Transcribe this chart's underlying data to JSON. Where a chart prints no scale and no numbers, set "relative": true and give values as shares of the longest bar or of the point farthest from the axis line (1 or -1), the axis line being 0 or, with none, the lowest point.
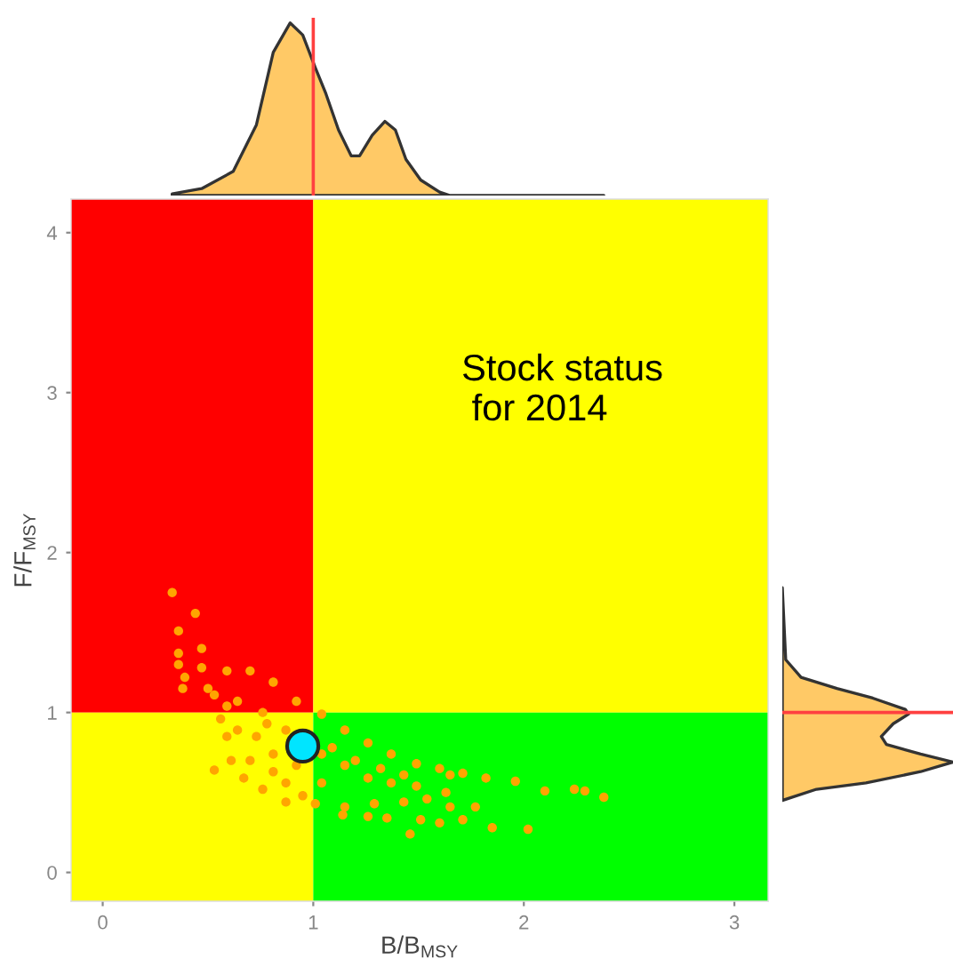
{
  "chart_data": [
    {
      "type": "scatter",
      "xlabel": "B/B$_{MSY}$",
      "ylabel": "F/F$_{MSY}$",
      "xlim": [
        -0.15,
        3.16
      ],
      "ylim": [
        -0.18,
        4.21
      ],
      "xticks": [
        0,
        1,
        2,
        3
      ],
      "yticks": [
        0,
        1,
        2,
        3,
        4
      ],
      "marker": "circle",
      "annotations": [
        "Stock status\n for 2014"
      ],
      "series": [
        {
          "type": "line",
          "color": "#ff0000",
          "x": [
            -0.15,
            1
          ],
          "values": [
            null,
            null
          ],
          "lower": [
            1,
            1
          ],
          "upper": [
            4.21,
            4.21
          ]
        },
        {
          "type": "line",
          "color": "#ffff00",
          "x": [
            1,
            3.16
          ],
          "values": [
            null,
            null
          ],
          "lower": [
            1,
            1
          ],
          "upper": [
            4.21,
            4.21
          ]
        },
        {
          "type": "line",
          "color": "#ffff00",
          "x": [
            -0.15,
            1
          ],
          "values": [
            null,
            null
          ],
          "lower": [
            -0.18,
            -0.18
          ],
          "upper": [
            1,
            1
          ]
        },
        {
          "type": "line",
          "color": "#00ff00",
          "x": [
            1,
            3.16
          ],
          "values": [
            null,
            null
          ],
          "lower": [
            -0.18,
            -0.18
          ],
          "upper": [
            1,
            1
          ]
        },
        {
          "type": "scatter",
          "color": "#ffa500",
          "x": [
            0.33,
            0.44,
            0.36,
            0.47,
            0.36,
            0.38,
            0.53,
            1.71,
            1.82,
            1.96,
            2.1,
            2.24,
            2.29,
            2.38,
            2.02,
            1.85,
            1.71,
            1.6,
            1.46,
            1.14,
            1.26,
            1.35,
            1.51,
            1.65,
            1.77,
            0.36,
            0.47,
            0.59,
            0.7,
            0.81,
            0.92,
            1.04,
            1.15,
            1.26,
            1.37,
            1.49,
            1.6,
            1.65,
            0.39,
            0.5,
            0.56,
            0.59,
            0.61,
            0.67,
            0.76,
            0.87,
            1.01,
            1.15,
            1.29,
            1.43,
            1.54,
            1.63,
            0.53,
            0.64,
            0.76,
            0.87,
            0.73,
            0.81,
            0.92,
            1.04,
            1.15,
            1.26,
            1.37,
            1.49,
            1.04,
            0.87,
            0.7,
            0.64,
            0.59,
            0.78,
            1.09,
            1.2,
            1.32,
            1.43,
            0.95,
            0.81
          ],
          "values": [
            1.75,
            1.62,
            1.51,
            1.4,
            1.37,
            1.15,
            0.64,
            0.62,
            0.59,
            0.57,
            0.51,
            0.52,
            0.51,
            0.47,
            0.27,
            0.28,
            0.33,
            0.31,
            0.24,
            0.36,
            0.35,
            0.34,
            0.33,
            0.41,
            0.41,
            1.3,
            1.28,
            1.26,
            1.26,
            1.19,
            1.07,
            0.99,
            0.89,
            0.81,
            0.74,
            0.68,
            0.65,
            0.61,
            1.22,
            1.15,
            0.96,
            0.85,
            0.7,
            0.59,
            0.52,
            0.44,
            0.43,
            0.41,
            0.43,
            0.44,
            0.46,
            0.5,
            1.11,
            1.07,
            1.0,
            0.89,
            0.85,
            0.74,
            0.67,
            0.74,
            0.67,
            0.59,
            0.56,
            0.54,
            0.56,
            0.56,
            0.7,
            0.89,
            1.04,
            0.93,
            0.78,
            0.7,
            0.65,
            0.61,
            0.48,
            0.63
          ]
        },
        {
          "type": "bubble",
          "color": "#00e5ff",
          "x": [
            0.95
          ],
          "values": [
            0.79
          ],
          "sizes": [
            1
          ]
        }
      ]
    },
    {
      "type": "area",
      "relative": true,
      "tick_labels": false,
      "xlim": [
        -0.15,
        3.16
      ],
      "ref_lines": [
        {
          "axis": "x",
          "value": 1,
          "color": "#ff4040"
        }
      ],
      "series": [
        {
          "color": "#ffc966",
          "x": [
            0.33,
            0.47,
            0.62,
            0.73,
            0.81,
            0.89,
            0.95,
            1.01,
            1.06,
            1.12,
            1.18,
            1.22,
            1.28,
            1.34,
            1.39,
            1.44,
            1.51,
            1.6,
            1.65,
            2.38
          ],
          "values": [
            0.01,
            0.04,
            0.14,
            0.41,
            0.83,
            1,
            0.93,
            0.74,
            0.59,
            0.38,
            0.23,
            0.23,
            0.35,
            0.43,
            0.38,
            0.21,
            0.09,
            0.02,
            0,
            0
          ]
        }
      ]
    },
    {
      "type": "area",
      "relative": true,
      "orientation": "horizontal",
      "tick_labels": false,
      "ylim": [
        -0.18,
        4.21
      ],
      "ref_lines": [
        {
          "axis": "y",
          "value": 1,
          "color": "#ff4040"
        }
      ],
      "series": [
        {
          "color": "#ffc966",
          "x": [
            1.78,
            1.33,
            1.22,
            1.15,
            1.09,
            1.02,
            0.99,
            0.93,
            0.85,
            0.8,
            0.74,
            0.69,
            0.63,
            0.56,
            0.52,
            0.45
          ],
          "values": [
            0,
            0.02,
            0.11,
            0.32,
            0.53,
            0.72,
            0.74,
            0.65,
            0.58,
            0.61,
            0.81,
            1,
            0.81,
            0.49,
            0.2,
            0
          ]
        }
      ]
    }
  ]
}
